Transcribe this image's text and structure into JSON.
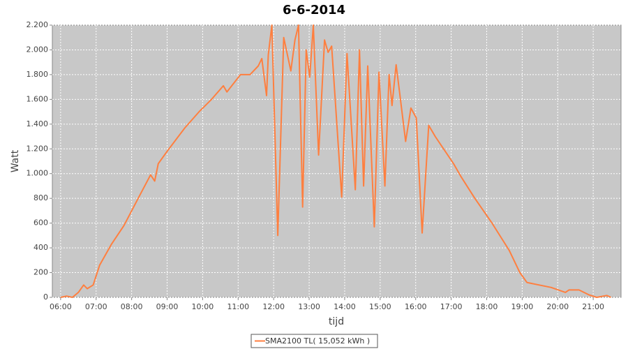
{
  "chart_data": {
    "type": "line",
    "title": "6-6-2014",
    "x_label": "tijd",
    "y_label": "Watt",
    "x": [
      "06:00",
      "06:10",
      "06:20",
      "06:30",
      "06:39",
      "06:45",
      "06:55",
      "07:06",
      "07:26",
      "07:47",
      "08:11",
      "08:32",
      "08:39",
      "08:45",
      "09:00",
      "09:30",
      "09:54",
      "10:15",
      "10:35",
      "10:41",
      "11:04",
      "11:20",
      "11:34",
      "11:40",
      "11:48",
      "11:51",
      "11:57",
      "12:07",
      "12:17",
      "12:29",
      "12:36",
      "12:42",
      "12:49",
      "12:55",
      "13:01",
      "13:07",
      "13:16",
      "13:26",
      "13:32",
      "13:38",
      "13:55",
      "14:04",
      "14:18",
      "14:25",
      "14:32",
      "14:39",
      "14:50",
      "14:58",
      "15:08",
      "15:15",
      "15:20",
      "15:27",
      "15:33",
      "15:43",
      "15:52",
      "16:01",
      "16:11",
      "16:22",
      "16:33",
      "17:04",
      "17:16",
      "17:40",
      "18:09",
      "18:38",
      "18:56",
      "19:08",
      "19:49",
      "20:13",
      "20:19",
      "20:36",
      "20:53",
      "21:06",
      "21:23",
      "21:30"
    ],
    "series": [
      {
        "name": "SMA2100 TL( 15,052 kWh )",
        "color": "#ff7f3f",
        "values": [
          0,
          10,
          0,
          40,
          100,
          70,
          100,
          260,
          430,
          580,
          800,
          990,
          940,
          1080,
          1180,
          1370,
          1500,
          1600,
          1710,
          1660,
          1800,
          1800,
          1870,
          1930,
          1630,
          1960,
          2200,
          500,
          2100,
          1830,
          2080,
          2200,
          730,
          2000,
          1780,
          2200,
          1150,
          2080,
          1980,
          2030,
          810,
          1970,
          870,
          2000,
          900,
          1870,
          570,
          1820,
          900,
          1800,
          1550,
          1880,
          1650,
          1260,
          1530,
          1450,
          520,
          1390,
          1300,
          1080,
          980,
          800,
          600,
          380,
          200,
          120,
          80,
          40,
          60,
          60,
          20,
          0,
          15,
          0
        ]
      }
    ],
    "xlim": [
      "05:46",
      "21:47"
    ],
    "xticks": [
      "06:00",
      "07:00",
      "08:00",
      "09:00",
      "10:00",
      "11:00",
      "12:00",
      "13:00",
      "14:00",
      "15:00",
      "16:00",
      "17:00",
      "18:00",
      "19:00",
      "20:00",
      "21:00"
    ],
    "ylim": [
      0,
      2200
    ],
    "yticks": [
      0,
      200,
      400,
      600,
      800,
      {
        "value": 1000,
        "label": "1.000"
      },
      {
        "value": 1200,
        "label": "1.200"
      },
      {
        "value": 1400,
        "label": "1.400"
      },
      {
        "value": 1600,
        "label": "1.600"
      },
      {
        "value": 1800,
        "label": "1.800"
      },
      {
        "value": 2000,
        "label": "2.000"
      },
      {
        "value": 2200,
        "label": "2.200"
      }
    ],
    "grid": true
  }
}
